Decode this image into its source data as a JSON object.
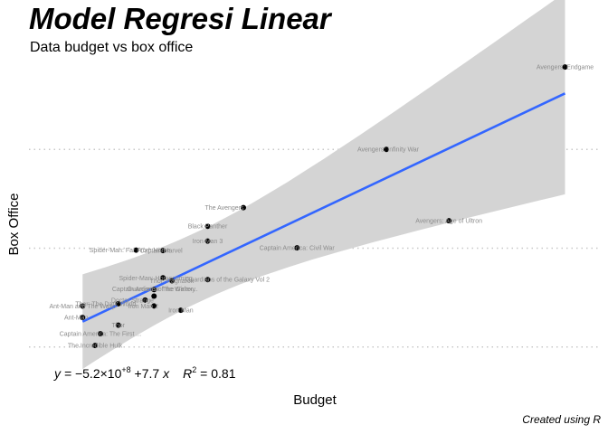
{
  "chart_data": {
    "type": "scatter",
    "title": "Model Regresi Linear",
    "subtitle": "Data budget vs box office",
    "xlabel": "Budget",
    "ylabel": "Box Office",
    "caption": "Created using R",
    "equation": {
      "lhs": "y = ",
      "coef_mantissa": "−5.2",
      "times_ten": "×10",
      "exponent": "+8",
      "slope_part": " +7.7",
      "xvar": "x",
      "r_symbol": "R",
      "r_exponent": "2",
      "r_value": " = 0.81"
    },
    "grid": {
      "horizontal": true,
      "vertical": false,
      "style": "dotted"
    },
    "xlim": [
      100,
      420
    ],
    "ylim": [
      100,
      2900
    ],
    "fit": {
      "intercept": -520,
      "slope": 7.7,
      "color": "#3366ff",
      "band_color": "#d4d4d4"
    },
    "point_color": "#000000",
    "points": [
      {
        "name": "Avengers: Endgame",
        "x": 400,
        "y": 2800
      },
      {
        "name": "Avengers: Infinity War",
        "x": 300,
        "y": 2050
      },
      {
        "name": "Avengers: Age of Ultron",
        "x": 335,
        "y": 1400
      },
      {
        "name": "The Avengers",
        "x": 220,
        "y": 1520
      },
      {
        "name": "Black Panther",
        "x": 200,
        "y": 1350
      },
      {
        "name": "Iron Man 3",
        "x": 200,
        "y": 1215
      },
      {
        "name": "Captain America: Civil War",
        "x": 250,
        "y": 1153
      },
      {
        "name": "Spider-Man: Far From Home",
        "x": 160,
        "y": 1132
      },
      {
        "name": "Captain Marvel",
        "x": 175,
        "y": 1128
      },
      {
        "name": "Spider-Man: Homecoming",
        "x": 175,
        "y": 880
      },
      {
        "name": "Thor: Ragnarok",
        "x": 180,
        "y": 854
      },
      {
        "name": "Guardians of the Galaxy Vol 2",
        "x": 200,
        "y": 864
      },
      {
        "name": "Guardians of the Galaxy",
        "x": 170,
        "y": 773
      },
      {
        "name": "Captain America: The Winter Soldier",
        "x": 170,
        "y": 714
      },
      {
        "name": "Doctor Strange",
        "x": 165,
        "y": 678
      },
      {
        "name": "Iron Man 2",
        "x": 170,
        "y": 624
      },
      {
        "name": "Thor: The Dark World",
        "x": 150,
        "y": 645
      },
      {
        "name": "Iron Man",
        "x": 185,
        "y": 585
      },
      {
        "name": "Ant-Man and The Wasp",
        "x": 130,
        "y": 623
      },
      {
        "name": "Ant-Man",
        "x": 130,
        "y": 519
      },
      {
        "name": "Thor",
        "x": 150,
        "y": 449
      },
      {
        "name": "Captain America: The First Avenger",
        "x": 140,
        "y": 371
      },
      {
        "name": "The Incredible Hulk",
        "x": 137,
        "y": 264
      }
    ],
    "label_text": [
      "Avengers: Endgame",
      "Avengers: Infinity War",
      "Avengers: Age of Ultron",
      "The Avengers",
      "Black Panther",
      "Iron Man 3",
      "Captain America: Civil War",
      "Spider-Man: Far From Home",
      "Captain Marvel",
      "Spider-Man: Homecoming",
      "Thor: Ragnarok",
      "Guardians of the Galaxy Vol 2",
      "Guardians of the Galaxy",
      "Captain America: The Winter...",
      "Doctor Strange",
      "Iron Man 2",
      "Thor: The Dark World",
      "Iron Man",
      "Ant-Man and The Wasp",
      "Ant-Man",
      "Thor",
      "Captain America: The First ...",
      "The Incredible Hulk"
    ]
  }
}
